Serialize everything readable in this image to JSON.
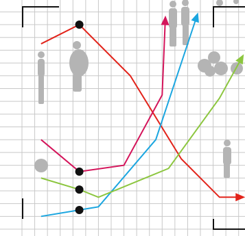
{
  "chart_data": {
    "type": "line",
    "xlim": [
      0,
      17.5
    ],
    "ylim": [
      0,
      17.5
    ],
    "xticks": [
      0,
      1,
      2,
      3,
      4,
      5,
      6,
      7,
      8,
      9,
      10,
      11,
      12,
      13,
      14,
      15,
      16,
      17
    ],
    "yticks": [
      0,
      1,
      2,
      3,
      4,
      5,
      6,
      7,
      8,
      9,
      10,
      11,
      12,
      13,
      14,
      15,
      16,
      17
    ],
    "grid": true,
    "tick_labels": false,
    "end_marker": "arrow",
    "highlight_x": 4.5,
    "series": [
      {
        "color": "#e2231a",
        "x": [
          1.5,
          4.5,
          8.5,
          12.5,
          15.5,
          17.3
        ],
        "values": [
          14.5,
          16,
          12,
          5.5,
          2.5,
          2.5
        ]
      },
      {
        "color": "#d4145a",
        "x": [
          1.5,
          4.5,
          8,
          11,
          11.25
        ],
        "values": [
          7,
          4.5,
          5,
          10.5,
          16.5
        ]
      },
      {
        "color": "#1ba6e0",
        "x": [
          1.5,
          4.5,
          6,
          10.5,
          13.75
        ],
        "values": [
          1,
          1.5,
          1.75,
          7,
          16.75
        ]
      },
      {
        "color": "#8cc63f",
        "x": [
          1.5,
          4.5,
          6,
          11.5,
          15.5,
          17.3
        ],
        "values": [
          4,
          3.1,
          2.5,
          4.75,
          10.25,
          13.5
        ]
      }
    ]
  }
}
